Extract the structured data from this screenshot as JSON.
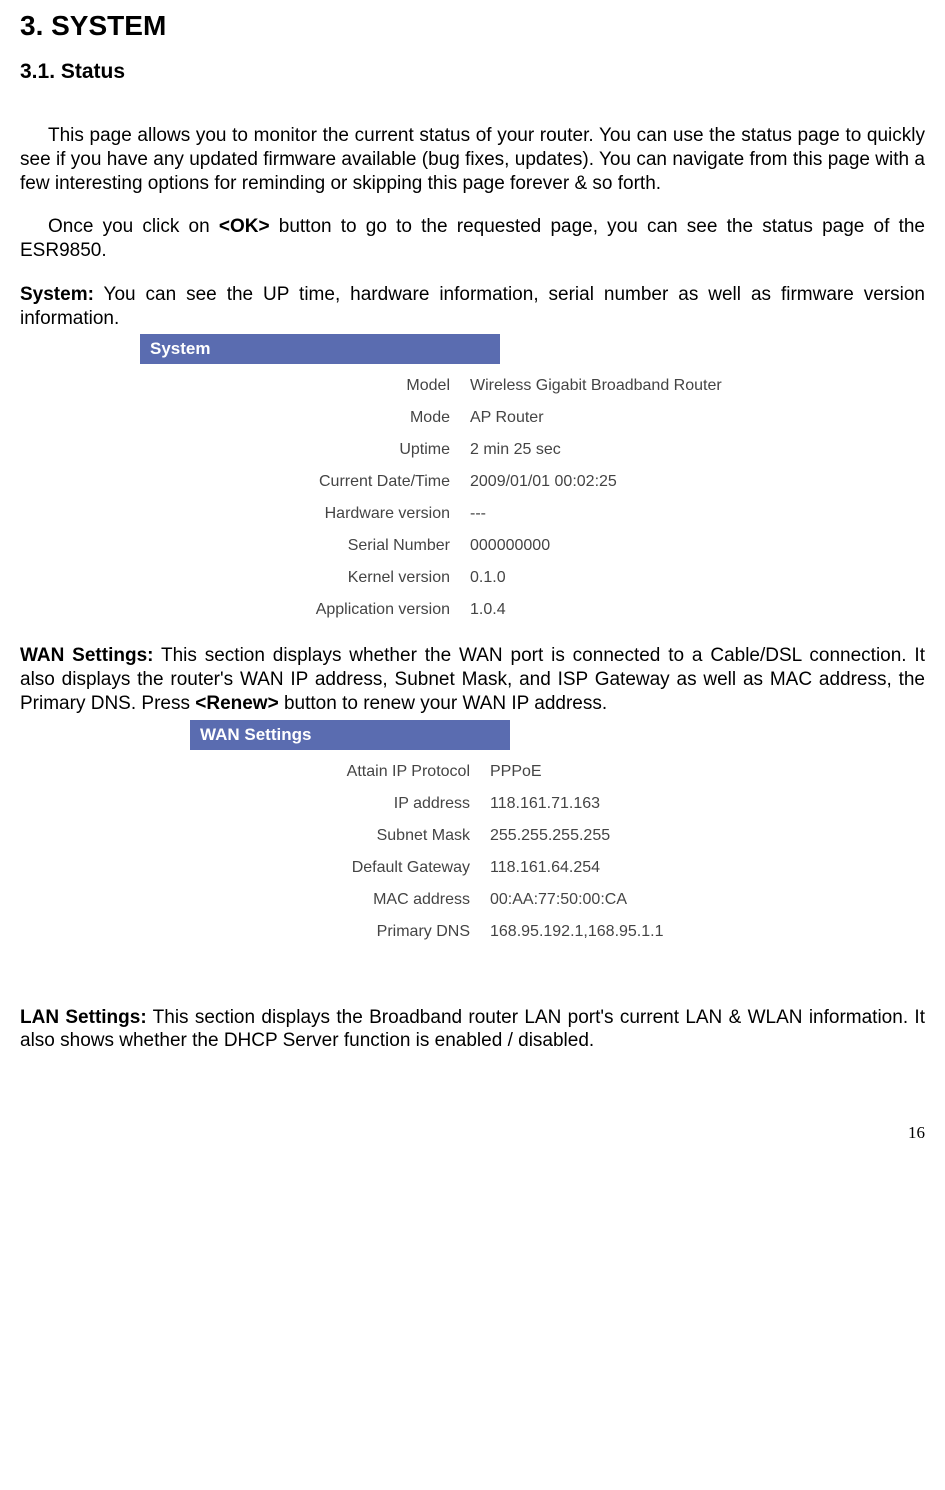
{
  "heading1": "3. SYSTEM",
  "heading2": "3.1. Status",
  "para1": "This page allows you to monitor the current status of your router. You can use the status page to quickly see if you have any updated firmware available (bug fixes, updates). You can navigate from this page with a few interesting options for reminding or skipping this page forever & so forth.",
  "para2_a": "Once you click on ",
  "para2_b": "<OK>",
  "para2_c": " button to go to the requested page, you can see the status page of the ESR9850.",
  "system": {
    "label": "System:",
    "desc": " You can see the UP time, hardware information, serial number as well as firmware version information.",
    "panel_title": "System",
    "rows": [
      {
        "label": "Model",
        "value": "Wireless Gigabit Broadband Router"
      },
      {
        "label": "Mode",
        "value": "AP Router"
      },
      {
        "label": "Uptime",
        "value": "2 min 25 sec"
      },
      {
        "label": "Current Date/Time",
        "value": "2009/01/01 00:02:25"
      },
      {
        "label": "Hardware version",
        "value": "---"
      },
      {
        "label": "Serial Number",
        "value": "000000000"
      },
      {
        "label": "Kernel version",
        "value": "0.1.0"
      },
      {
        "label": "Application version",
        "value": "1.0.4"
      }
    ]
  },
  "wan": {
    "label": "WAN Settings:",
    "desc_a": " This section displays whether the WAN port is connected to a Cable/DSL connection. It also displays the router's WAN IP address, Subnet Mask, and ISP Gateway as well as MAC address, the Primary DNS. Press ",
    "desc_b": "<Renew>",
    "desc_c": " button to renew your WAN IP address.",
    "panel_title": "WAN Settings",
    "rows": [
      {
        "label": "Attain IP Protocol",
        "value": "PPPoE"
      },
      {
        "label": "IP address",
        "value": "118.161.71.163"
      },
      {
        "label": "Subnet Mask",
        "value": "255.255.255.255"
      },
      {
        "label": "Default Gateway",
        "value": "118.161.64.254"
      },
      {
        "label": "MAC address",
        "value": "00:AA:77:50:00:CA"
      },
      {
        "label": "Primary DNS",
        "value": "168.95.192.1,168.95.1.1"
      }
    ]
  },
  "lan": {
    "label": "LAN Settings:",
    "desc": " This section displays the Broadband router LAN port's current LAN & WLAN information. It also shows whether the DHCP Server function is enabled / disabled."
  },
  "page_number": "16",
  "colors": {
    "panel_header_bg": "#5a6cb0",
    "panel_header_fg": "#ffffff",
    "text": "#000000",
    "panel_text": "#444444"
  }
}
